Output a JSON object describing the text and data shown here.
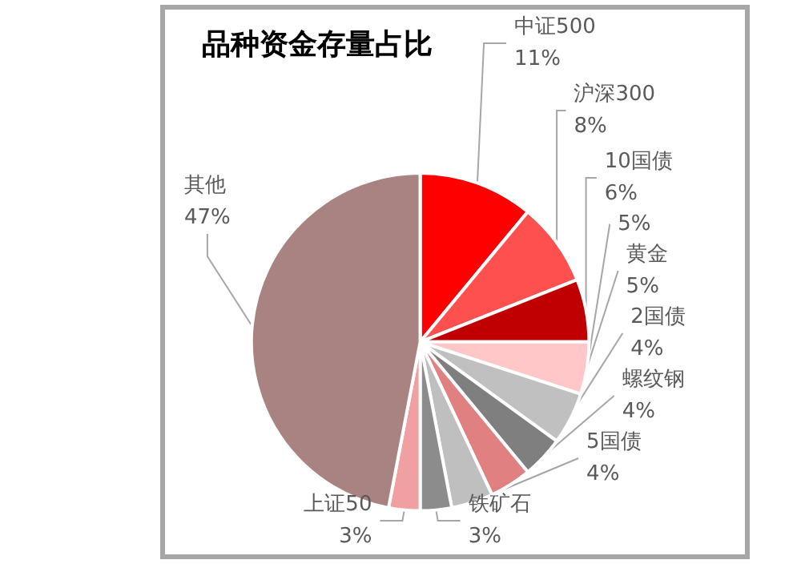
{
  "chart_data": {
    "type": "pie",
    "title": "品种资金存量占比",
    "categories": [
      "中证500",
      "沪深300",
      "10国债",
      null,
      "黄金",
      "2国债",
      "螺纹钢",
      "5国债",
      "铁矿石",
      "上证50",
      "其他"
    ],
    "values": [
      11,
      8,
      6,
      5,
      5,
      4,
      4,
      4,
      3,
      3,
      47
    ],
    "value_labels": [
      "11%",
      "8%",
      "6%",
      "5%",
      "5%",
      "4%",
      "4%",
      "4%",
      "3%",
      "3%",
      "47%"
    ],
    "colors": [
      "#ff0000",
      "#ff5050",
      "#c00000",
      "#ffc7c7",
      "#c0c0c0",
      "#7f7f7f",
      "#e08080",
      "#bfbfbf",
      "#8c8c8c",
      "#f0a0a0",
      "#a98282"
    ]
  }
}
